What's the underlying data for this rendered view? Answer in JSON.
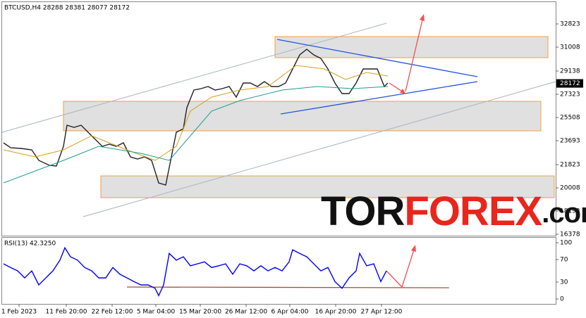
{
  "chart_data": [
    {
      "type": "line",
      "title": "BTCUSD,H4  28288 28381 28077 28172",
      "xlim": [
        0,
        785
      ],
      "ylim": [
        16268,
        34528
      ],
      "yticks": [
        16378,
        18193,
        20008,
        21823,
        23693,
        25508,
        27323,
        29138,
        31008,
        32823
      ],
      "last_price": 28172,
      "series": [
        {
          "color": "#222222",
          "x": [
            2,
            12,
            27,
            42,
            52,
            67,
            77,
            87,
            92,
            102,
            112,
            122,
            132,
            142,
            152,
            162,
            172,
            182,
            192,
            202,
            212,
            222,
            232,
            237,
            247,
            257,
            262,
            272,
            282,
            292,
            302,
            312,
            322,
            332,
            342,
            352,
            362,
            372,
            382,
            392,
            402,
            412,
            422,
            432,
            442,
            452,
            462,
            472,
            482,
            492,
            502,
            512,
            522,
            532,
            542,
            547
          ],
          "values": [
            23528,
            23143,
            23088,
            22978,
            22153,
            21768,
            21713,
            23253,
            24903,
            24738,
            24903,
            24353,
            23803,
            23253,
            23418,
            23253,
            23528,
            22428,
            22263,
            22428,
            22153,
            20393,
            20228,
            21603,
            24353,
            24628,
            26278,
            27653,
            27763,
            27928,
            27653,
            27763,
            27928,
            27103,
            28203,
            28203,
            27928,
            28313,
            27928,
            27928,
            28203,
            29303,
            30403,
            30843,
            30403,
            30128,
            29303,
            28203,
            27378,
            27378,
            28203,
            29303,
            29303,
            29303,
            27928,
            28203
          ]
        },
        {
          "color": "#d4a017",
          "x": [
            2,
            47,
            87,
            127,
            177,
            217,
            247,
            267,
            297,
            337,
            377,
            417,
            457,
            487,
            517,
            547
          ],
          "values": [
            22978,
            22428,
            22978,
            24078,
            22978,
            22153,
            23253,
            26003,
            27103,
            27653,
            27928,
            29578,
            29303,
            28478,
            29028,
            28753
          ]
        },
        {
          "color": "#1e9e8c",
          "x": [
            2,
            47,
            87,
            137,
            197,
            237,
            267,
            297,
            337,
            397,
            447,
            497,
            547
          ],
          "values": [
            20393,
            21328,
            22153,
            23253,
            22703,
            22153,
            24078,
            26003,
            26828,
            27653,
            27928,
            27763,
            27928
          ]
        }
      ]
    },
    {
      "type": "line",
      "title": "RSI(13) 42.3250",
      "xlim": [
        0,
        785
      ],
      "ylim": [
        -8.75,
        108.75
      ],
      "yticks": [
        0,
        30,
        70,
        100
      ],
      "xticks": [
        {
          "value": 24,
          "label": "1 Feb 2023"
        },
        {
          "value": 91,
          "label": "11 Feb 20:00"
        },
        {
          "value": 156,
          "label": "22 Feb 12:00"
        },
        {
          "value": 218,
          "label": "5 Mar 04:00"
        },
        {
          "value": 281,
          "label": "15 Mar 20:00"
        },
        {
          "value": 346,
          "label": "26 Mar 12:00"
        },
        {
          "value": 408,
          "label": "6 Apr 04:00"
        },
        {
          "value": 473,
          "label": "16 Apr 20:00"
        },
        {
          "value": 538,
          "label": "27 Apr 12:00"
        }
      ],
      "series": [
        {
          "color": "#0000ff",
          "x": [
            2,
            12,
            22,
            32,
            42,
            52,
            62,
            72,
            82,
            89,
            97,
            107,
            117,
            127,
            137,
            147,
            157,
            167,
            177,
            187,
            197,
            207,
            217,
            222,
            229,
            237,
            247,
            257,
            267,
            277,
            287,
            297,
            307,
            317,
            327,
            337,
            347,
            357,
            367,
            377,
            387,
            397,
            407,
            412,
            422,
            432,
            442,
            452,
            462,
            472,
            482,
            492,
            502,
            507,
            517,
            527,
            537,
            545
          ],
          "values": [
            62.5,
            56,
            50,
            37.5,
            50,
            25,
            37.5,
            50,
            69,
            91,
            75,
            69,
            56,
            50,
            37.5,
            37.5,
            56,
            44,
            37.5,
            31,
            25,
            25,
            19,
            6,
            25,
            81,
            69,
            75,
            59,
            62.5,
            66,
            56,
            59,
            62.5,
            44,
            62.5,
            59,
            50,
            59,
            50,
            56,
            50,
            66,
            87.5,
            81,
            75,
            62.5,
            50,
            56,
            31,
            19,
            37.5,
            50,
            81,
            59,
            62.5,
            31,
            50
          ]
        }
      ]
    }
  ],
  "watermark": {
    "part1": "TOR",
    "part2": "FOREX",
    "part3": ".com"
  }
}
